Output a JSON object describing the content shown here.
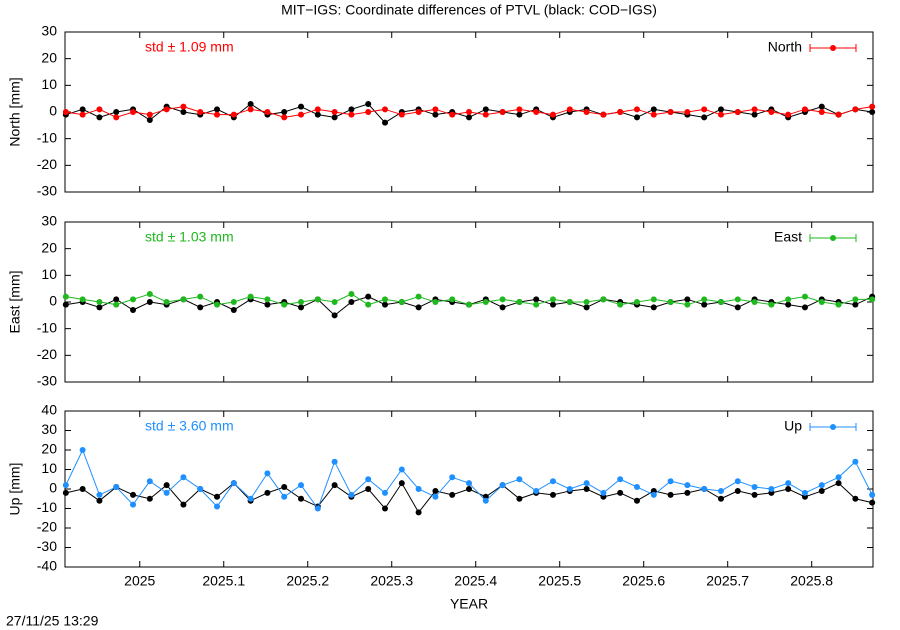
{
  "title": "MIT−IGS: Coordinate differences of PTVL (black: COD−IGS)",
  "timestamp": "27/11/25 13:29",
  "chart_data": [
    {
      "type": "line",
      "ylabel": "North [mm]",
      "annotation": "std ± 1.09 mm",
      "legend": "upper right",
      "xlim": [
        2024.911,
        2025.873
      ],
      "xticks": [
        2025,
        2025.1,
        2025.2,
        2025.3,
        2025.4,
        2025.5,
        2025.6,
        2025.7,
        2025.8
      ],
      "ylim": [
        -30,
        30
      ],
      "yticks": [
        -30,
        -20,
        -10,
        0,
        10,
        20,
        30
      ],
      "x": [
        2024.912,
        2024.932,
        2024.952,
        2024.972,
        2024.992,
        2025.012,
        2025.032,
        2025.052,
        2025.072,
        2025.092,
        2025.112,
        2025.132,
        2025.152,
        2025.172,
        2025.192,
        2025.212,
        2025.232,
        2025.252,
        2025.272,
        2025.292,
        2025.312,
        2025.332,
        2025.352,
        2025.372,
        2025.392,
        2025.412,
        2025.432,
        2025.452,
        2025.472,
        2025.492,
        2025.512,
        2025.532,
        2025.552,
        2025.572,
        2025.592,
        2025.612,
        2025.632,
        2025.652,
        2025.672,
        2025.692,
        2025.712,
        2025.732,
        2025.752,
        2025.772,
        2025.792,
        2025.812,
        2025.832,
        2025.852,
        2025.872
      ],
      "series": [
        {
          "color": "#000000",
          "values": [
            -1,
            1,
            -2,
            0,
            1,
            -3,
            2,
            0,
            -1,
            1,
            -2,
            3,
            -1,
            0,
            2,
            -1,
            -2,
            1,
            3,
            -4,
            0,
            1,
            -1,
            0,
            -2,
            1,
            0,
            -1,
            1,
            -2,
            0,
            1,
            -1,
            0,
            -2,
            1,
            0,
            -1,
            -2,
            1,
            0,
            -1,
            1,
            -2,
            0,
            2,
            -1,
            1,
            0
          ]
        },
        {
          "name": "North",
          "color": "#ff0000",
          "values": [
            0,
            -1,
            1,
            -2,
            0,
            -1,
            1,
            2,
            0,
            -1,
            -1,
            1,
            0,
            -2,
            -1,
            1,
            0,
            -1,
            0,
            1,
            -1,
            0,
            1,
            -1,
            0,
            -1,
            0,
            1,
            0,
            -1,
            1,
            0,
            -1,
            0,
            1,
            -1,
            0,
            0,
            1,
            -1,
            0,
            1,
            0,
            -1,
            1,
            0,
            -1,
            1,
            2
          ]
        }
      ]
    },
    {
      "type": "line",
      "ylabel": "East [mm]",
      "annotation": "std ± 1.03 mm",
      "legend": "upper right",
      "xlim": [
        2024.911,
        2025.873
      ],
      "xticks": [
        2025,
        2025.1,
        2025.2,
        2025.3,
        2025.4,
        2025.5,
        2025.6,
        2025.7,
        2025.8
      ],
      "ylim": [
        -30,
        30
      ],
      "yticks": [
        -30,
        -20,
        -10,
        0,
        10,
        20,
        30
      ],
      "x": [
        2024.912,
        2024.932,
        2024.952,
        2024.972,
        2024.992,
        2025.012,
        2025.032,
        2025.052,
        2025.072,
        2025.092,
        2025.112,
        2025.132,
        2025.152,
        2025.172,
        2025.192,
        2025.212,
        2025.232,
        2025.252,
        2025.272,
        2025.292,
        2025.312,
        2025.332,
        2025.352,
        2025.372,
        2025.392,
        2025.412,
        2025.432,
        2025.452,
        2025.472,
        2025.492,
        2025.512,
        2025.532,
        2025.552,
        2025.572,
        2025.592,
        2025.612,
        2025.632,
        2025.652,
        2025.672,
        2025.692,
        2025.712,
        2025.732,
        2025.752,
        2025.772,
        2025.792,
        2025.812,
        2025.832,
        2025.852,
        2025.872
      ],
      "series": [
        {
          "color": "#000000",
          "values": [
            -1,
            0,
            -2,
            1,
            -3,
            0,
            -1,
            1,
            -2,
            0,
            -3,
            1,
            -1,
            0,
            -2,
            1,
            -5,
            0,
            2,
            -1,
            0,
            -2,
            1,
            0,
            -1,
            1,
            -2,
            0,
            1,
            -1,
            0,
            -2,
            1,
            0,
            -1,
            -2,
            0,
            1,
            -1,
            0,
            -2,
            1,
            0,
            -1,
            -2,
            1,
            0,
            -1,
            2
          ]
        },
        {
          "name": "East",
          "color": "#1fb81f",
          "values": [
            2,
            1,
            0,
            -1,
            1,
            3,
            0,
            1,
            2,
            -1,
            0,
            2,
            1,
            -1,
            0,
            1,
            0,
            3,
            -1,
            1,
            0,
            2,
            0,
            1,
            -1,
            0,
            1,
            0,
            -1,
            1,
            0,
            0,
            1,
            -1,
            0,
            1,
            0,
            -1,
            1,
            0,
            1,
            0,
            -1,
            1,
            2,
            0,
            -1,
            1,
            1
          ]
        }
      ]
    },
    {
      "type": "line",
      "ylabel": "Up [mm]",
      "annotation": "std ± 3.60 mm",
      "legend": "upper right",
      "xlabel": "YEAR",
      "xlim": [
        2024.911,
        2025.873
      ],
      "xticks": [
        2025,
        2025.1,
        2025.2,
        2025.3,
        2025.4,
        2025.5,
        2025.6,
        2025.7,
        2025.8
      ],
      "ylim": [
        -40,
        40
      ],
      "yticks": [
        -40,
        -30,
        -20,
        -10,
        0,
        10,
        20,
        30,
        40
      ],
      "x": [
        2024.912,
        2024.932,
        2024.952,
        2024.972,
        2024.992,
        2025.012,
        2025.032,
        2025.052,
        2025.072,
        2025.092,
        2025.112,
        2025.132,
        2025.152,
        2025.172,
        2025.192,
        2025.212,
        2025.232,
        2025.252,
        2025.272,
        2025.292,
        2025.312,
        2025.332,
        2025.352,
        2025.372,
        2025.392,
        2025.412,
        2025.432,
        2025.452,
        2025.472,
        2025.492,
        2025.512,
        2025.532,
        2025.552,
        2025.572,
        2025.592,
        2025.612,
        2025.632,
        2025.652,
        2025.672,
        2025.692,
        2025.712,
        2025.732,
        2025.752,
        2025.772,
        2025.792,
        2025.812,
        2025.832,
        2025.852,
        2025.872
      ],
      "series": [
        {
          "color": "#000000",
          "values": [
            -2,
            0,
            -6,
            1,
            -3,
            -5,
            2,
            -8,
            0,
            -4,
            3,
            -6,
            -2,
            1,
            -5,
            -9,
            2,
            -4,
            0,
            -10,
            3,
            -12,
            -1,
            -3,
            0,
            -4,
            2,
            -5,
            -2,
            -3,
            -1,
            0,
            -4,
            -2,
            -6,
            -1,
            -3,
            -2,
            0,
            -5,
            -1,
            -3,
            -2,
            0,
            -4,
            -1,
            3,
            -5,
            -7
          ]
        },
        {
          "name": "Up",
          "color": "#1e90ff",
          "values": [
            2,
            20,
            -3,
            1,
            -8,
            4,
            -2,
            6,
            0,
            -9,
            3,
            -5,
            8,
            -4,
            2,
            -10,
            14,
            -3,
            5,
            -2,
            10,
            0,
            -4,
            6,
            3,
            -6,
            2,
            5,
            -1,
            4,
            0,
            3,
            -2,
            5,
            1,
            -3,
            4,
            2,
            0,
            -1,
            4,
            1,
            0,
            3,
            -2,
            2,
            6,
            14,
            -3
          ]
        }
      ]
    }
  ]
}
